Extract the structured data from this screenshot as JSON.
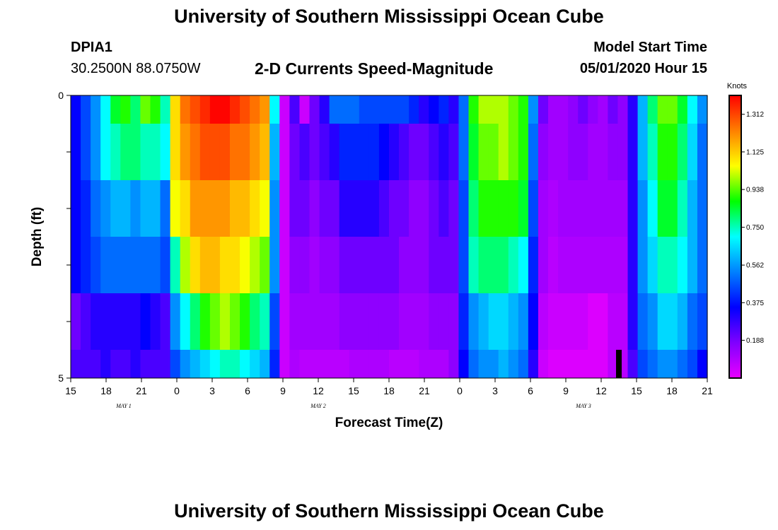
{
  "header": {
    "title": "University of Southern Mississippi Ocean Cube",
    "station_id": "DPIA1",
    "station_coords": "30.2500N 88.0750W",
    "subtitle": "2-D Currents Speed-Magnitude",
    "model_start_label": "Model Start Time",
    "model_start_value": "05/01/2020 Hour 15"
  },
  "footer": {
    "title": "University of Southern Mississippi Ocean Cube"
  },
  "colors": {
    "palette": [
      "#e800ff",
      "#8000ff",
      "#0000ff",
      "#0080ff",
      "#00ffff",
      "#00ff00",
      "#ffff00",
      "#ff8000",
      "#ff0000"
    ],
    "missing": "#000000"
  },
  "chart_data": {
    "type": "heatmap",
    "title": "2-D Currents Speed-Magnitude",
    "xlabel": "Forecast Time(Z)",
    "ylabel": "Depth (ft)",
    "colorbar_label": "Knots",
    "colorbar_ticks": [
      "1.312",
      "1.125",
      "0.938",
      "0.750",
      "0.562",
      "0.375",
      "0.188"
    ],
    "colorbar_range": [
      0.0,
      1.406
    ],
    "x_range_hours": [
      0,
      54
    ],
    "y_range_ft": [
      0,
      5
    ],
    "x_tick_labels": [
      "15",
      "18",
      "21",
      "0",
      "3",
      "6",
      "9",
      "12",
      "15",
      "18",
      "21",
      "0",
      "3",
      "6",
      "9",
      "12",
      "15",
      "18",
      "21"
    ],
    "y_tick_labels": [
      "0",
      "5"
    ],
    "date_labels": [
      {
        "label": "MAY 1",
        "hour": 4.5
      },
      {
        "label": "MAY 2",
        "hour": 21
      },
      {
        "label": "MAY 3",
        "hour": 43.5
      }
    ],
    "depth_layers": [
      "0-0.5",
      "0.5-1.5",
      "1.5-2.5",
      "2.5-3.5",
      "3.5-4.5",
      "4.5-5"
    ],
    "missing_value_cells": [
      {
        "hour": 46.5,
        "layer": 5
      }
    ],
    "speed_knots_by_layer": [
      [
        0.35,
        0.45,
        0.55,
        0.7,
        0.85,
        0.9,
        0.8,
        0.95,
        0.9,
        0.75,
        1.1,
        1.25,
        1.3,
        1.35,
        1.4,
        1.4,
        1.35,
        1.3,
        1.25,
        1.2,
        0.7,
        0.05,
        0.25,
        0.05,
        0.2,
        0.3,
        0.5,
        0.5,
        0.5,
        0.45,
        0.45,
        0.45,
        0.45,
        0.45,
        0.4,
        0.3,
        0.35,
        0.4,
        0.3,
        0.5,
        0.9,
        1.0,
        1.0,
        1.0,
        0.95,
        0.9,
        0.55,
        0.2,
        0.12,
        0.12,
        0.15,
        0.2,
        0.15,
        0.12,
        0.2,
        0.15,
        0.3,
        0.6,
        0.8,
        0.95,
        0.95,
        0.85,
        0.7,
        0.55
      ],
      [
        0.35,
        0.45,
        0.55,
        0.7,
        0.75,
        0.8,
        0.8,
        0.75,
        0.75,
        0.7,
        1.1,
        1.2,
        1.25,
        1.3,
        1.3,
        1.3,
        1.25,
        1.25,
        1.2,
        1.15,
        0.6,
        0.05,
        0.2,
        0.25,
        0.2,
        0.25,
        0.3,
        0.4,
        0.4,
        0.4,
        0.4,
        0.35,
        0.3,
        0.25,
        0.2,
        0.2,
        0.25,
        0.3,
        0.25,
        0.5,
        0.85,
        0.95,
        0.95,
        1.0,
        0.95,
        0.9,
        0.5,
        0.15,
        0.12,
        0.12,
        0.15,
        0.15,
        0.12,
        0.12,
        0.15,
        0.15,
        0.3,
        0.6,
        0.75,
        0.9,
        0.9,
        0.8,
        0.65,
        0.5
      ],
      [
        0.35,
        0.4,
        0.5,
        0.55,
        0.6,
        0.6,
        0.55,
        0.6,
        0.6,
        0.5,
        1.05,
        1.1,
        1.2,
        1.2,
        1.2,
        1.2,
        1.15,
        1.15,
        1.1,
        1.05,
        0.55,
        0.05,
        0.2,
        0.2,
        0.15,
        0.2,
        0.2,
        0.3,
        0.3,
        0.3,
        0.3,
        0.25,
        0.2,
        0.2,
        0.15,
        0.15,
        0.2,
        0.25,
        0.2,
        0.45,
        0.8,
        0.9,
        0.9,
        0.9,
        0.9,
        0.85,
        0.45,
        0.12,
        0.1,
        0.12,
        0.12,
        0.12,
        0.12,
        0.12,
        0.12,
        0.12,
        0.3,
        0.55,
        0.7,
        0.85,
        0.85,
        0.75,
        0.6,
        0.5
      ],
      [
        0.35,
        0.4,
        0.45,
        0.5,
        0.5,
        0.5,
        0.5,
        0.5,
        0.5,
        0.45,
        0.75,
        1.0,
        1.1,
        1.15,
        1.15,
        1.1,
        1.1,
        1.05,
        1.0,
        0.95,
        0.55,
        0.05,
        0.15,
        0.15,
        0.12,
        0.15,
        0.15,
        0.2,
        0.2,
        0.2,
        0.2,
        0.2,
        0.2,
        0.15,
        0.15,
        0.15,
        0.2,
        0.2,
        0.2,
        0.45,
        0.75,
        0.8,
        0.8,
        0.8,
        0.75,
        0.7,
        0.4,
        0.12,
        0.08,
        0.1,
        0.1,
        0.1,
        0.1,
        0.1,
        0.1,
        0.1,
        0.3,
        0.55,
        0.65,
        0.75,
        0.75,
        0.7,
        0.6,
        0.5
      ],
      [
        0.2,
        0.25,
        0.3,
        0.3,
        0.3,
        0.3,
        0.3,
        0.35,
        0.3,
        0.25,
        0.55,
        0.7,
        0.8,
        0.9,
        0.95,
        1.0,
        0.95,
        0.9,
        0.8,
        0.75,
        0.45,
        0.05,
        0.12,
        0.12,
        0.12,
        0.12,
        0.12,
        0.15,
        0.15,
        0.15,
        0.15,
        0.15,
        0.15,
        0.12,
        0.12,
        0.12,
        0.15,
        0.15,
        0.15,
        0.4,
        0.55,
        0.6,
        0.65,
        0.65,
        0.6,
        0.55,
        0.35,
        0.08,
        0.05,
        0.05,
        0.05,
        0.05,
        0.02,
        0.02,
        0.08,
        0.08,
        0.3,
        0.5,
        0.55,
        0.65,
        0.65,
        0.6,
        0.5,
        0.45
      ],
      [
        0.25,
        0.25,
        0.25,
        0.3,
        0.25,
        0.25,
        0.3,
        0.25,
        0.25,
        0.25,
        0.45,
        0.55,
        0.6,
        0.65,
        0.7,
        0.75,
        0.75,
        0.7,
        0.65,
        0.6,
        0.4,
        0.05,
        0.1,
        0.08,
        0.08,
        0.08,
        0.08,
        0.08,
        0.1,
        0.1,
        0.1,
        0.1,
        0.08,
        0.08,
        0.08,
        0.1,
        0.1,
        0.1,
        0.15,
        0.35,
        0.5,
        0.55,
        0.55,
        0.6,
        0.55,
        0.5,
        0.3,
        0.05,
        0.02,
        0.02,
        0.02,
        0.02,
        0.02,
        0.02,
        0.08,
        0.08,
        0.25,
        0.45,
        0.5,
        0.55,
        0.55,
        0.5,
        0.45,
        0.35
      ]
    ]
  }
}
